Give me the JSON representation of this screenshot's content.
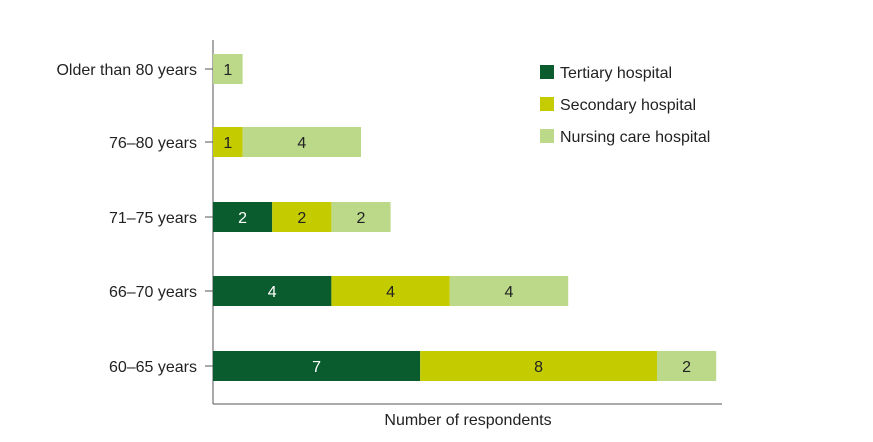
{
  "chart_data": {
    "type": "bar",
    "orientation": "horizontal",
    "stacked": true,
    "title": "",
    "xlabel": "Number of respondents",
    "ylabel": "",
    "xlim": [
      0,
      17
    ],
    "grid": false,
    "legend_position": "top-right",
    "categories": [
      "Older than 80 years",
      "76–80 years",
      "71–75 years",
      "66–70 years",
      "60–65 years"
    ],
    "series": [
      {
        "name": "Tertiary hospital",
        "color": "#0a5c2f",
        "label_color": "#ffffff",
        "values": [
          0,
          0,
          2,
          4,
          7
        ]
      },
      {
        "name": "Secondary hospital",
        "color": "#c4cc00",
        "label_color": "#222222",
        "values": [
          0,
          1,
          2,
          4,
          8
        ]
      },
      {
        "name": "Nursing care hospital",
        "color": "#bcd98a",
        "label_color": "#222222",
        "values": [
          1,
          4,
          2,
          4,
          2
        ]
      }
    ]
  }
}
